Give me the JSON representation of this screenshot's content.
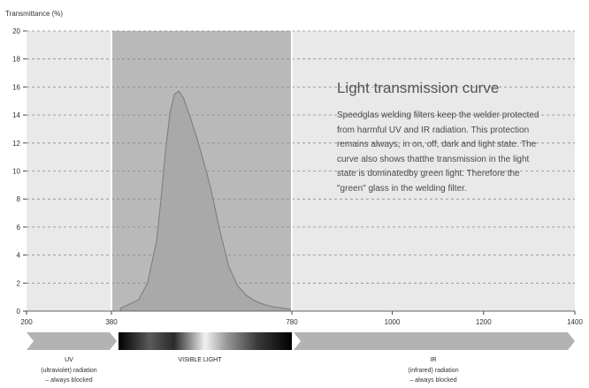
{
  "chart_data": {
    "type": "area",
    "ylabel": "Transmittance (%)",
    "xlabel": "",
    "xlim": [
      200,
      1400
    ],
    "ylim": [
      0,
      20
    ],
    "x_ticks": [
      200,
      380,
      780,
      1000,
      1200,
      1400
    ],
    "y_ticks": [
      0,
      2,
      4,
      6,
      8,
      10,
      12,
      14,
      16,
      18,
      20
    ],
    "grid": "horizontal dashed",
    "x_breaks": [
      380,
      780
    ],
    "series": [
      {
        "x": [
          400,
          440,
          460,
          480,
          490,
          500,
          510,
          520,
          530,
          540,
          555,
          570,
          585,
          600,
          620,
          640,
          660,
          680,
          700,
          720,
          740,
          760,
          780
        ],
        "values": [
          0.2,
          0.8,
          2.0,
          5.0,
          8.0,
          11.5,
          14.2,
          15.5,
          15.7,
          15.2,
          13.8,
          12.3,
          10.6,
          8.8,
          5.8,
          3.2,
          1.8,
          1.1,
          0.7,
          0.45,
          0.3,
          0.2,
          0.1
        ]
      }
    ],
    "regions": [
      {
        "x0": 200,
        "x1": 380,
        "title": "UV",
        "lines": [
          "(ultraviolet) radiation",
          "– always blocked"
        ]
      },
      {
        "x0": 380,
        "x1": 780,
        "title": "VISIBLE LIGHT",
        "lines": []
      },
      {
        "x0": 780,
        "x1": 1400,
        "title": "IR",
        "lines": [
          "(infrared) radiation",
          "– always blocked"
        ]
      }
    ]
  },
  "info": {
    "title": "Light transmission curve",
    "body": "Speedglas welding filters keep the welder protected from harmful UV and IR radiation. This protection remains always, in on, off, dark and light state. The curve also shows thatthe transmission in the light state is dominatedby green light. Therefore the \"green\" glass in the welding filter."
  },
  "colors": {
    "panel": "#e9e9e9",
    "visible_band": "#b9b9b9",
    "curve_fill": "#a9a9a9",
    "curve_stroke": "#7a7a7a",
    "arrow": "#b3b3b3",
    "grid": "#8a8a8a"
  }
}
